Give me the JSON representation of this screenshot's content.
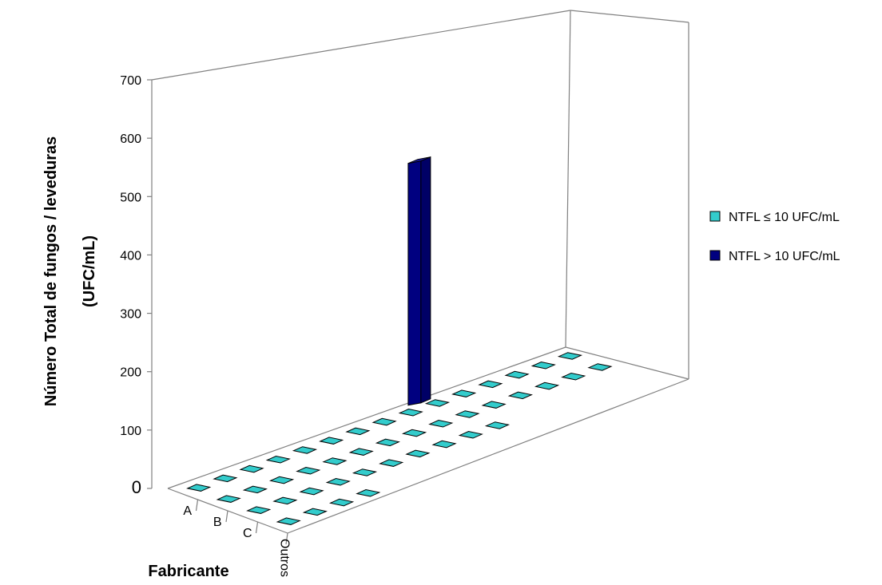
{
  "chart_data": {
    "type": "bar",
    "title": "",
    "ylabel_line1": "Número Total de fungos / leveduras",
    "ylabel_line2": "(UFC/mL)",
    "xlabel": "Fabricante",
    "yticks": [
      0,
      100,
      200,
      300,
      400,
      500,
      600,
      700
    ],
    "ylim": [
      0,
      700
    ],
    "categories": [
      "A",
      "B",
      "C",
      "Outros"
    ],
    "series": [
      {
        "name": "NTFL ≤ 10 UFC/mL",
        "color": "#33cccc",
        "values": [
          [
            0,
            0,
            0,
            0,
            0,
            0,
            0,
            0,
            0,
            0,
            0,
            0,
            0,
            0,
            0
          ],
          [
            0,
            0,
            0,
            0,
            0,
            0,
            0,
            0,
            0,
            0,
            0,
            0,
            0,
            0,
            0
          ],
          [
            0,
            0,
            0,
            0,
            0,
            0,
            0,
            0,
            0,
            0
          ],
          [
            0,
            0,
            0,
            0
          ]
        ]
      },
      {
        "name": "NTFL > 10 UFC/mL",
        "color": "#000080",
        "values": [
          [
            null,
            null,
            null,
            null,
            null,
            null,
            null,
            null,
            560,
            null,
            null,
            null,
            null,
            null,
            null
          ],
          [],
          [],
          []
        ]
      }
    ],
    "legend_position": "right",
    "grid": false
  }
}
